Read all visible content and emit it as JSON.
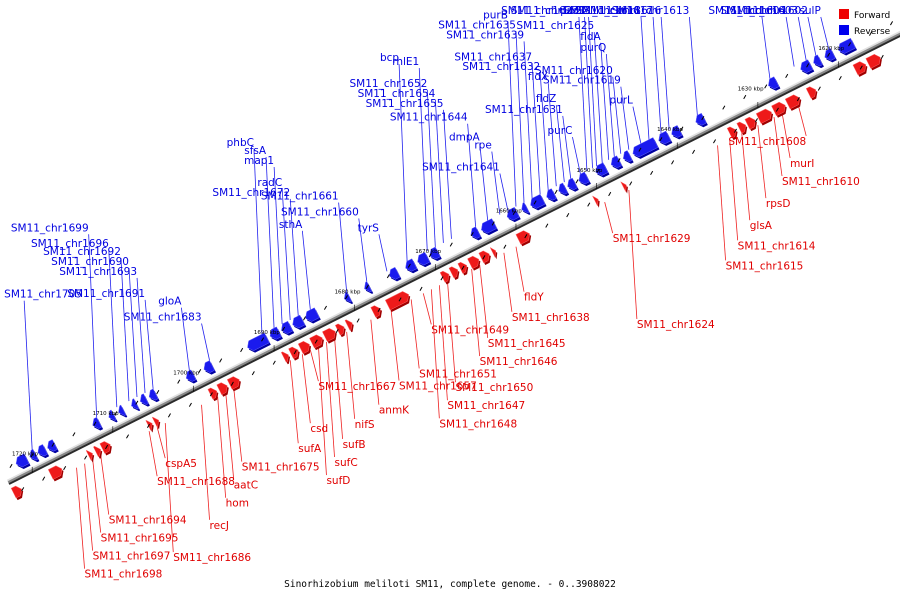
{
  "legend": {
    "forward": {
      "label": "Forward",
      "color": "#ee0000"
    },
    "reverse": {
      "label": "Reverse",
      "color": "#0000ee"
    }
  },
  "caption": "Sinorhizobium meliloti SM11, complete genome. - 0..3908022",
  "ticks": [
    {
      "label": "1620 kbp",
      "pos": 1620
    },
    {
      "label": "1630 kbp",
      "pos": 1630
    },
    {
      "label": "1640 kbp",
      "pos": 1640
    },
    {
      "label": "1650 kbp",
      "pos": 1650
    },
    {
      "label": "1660 kbp",
      "pos": 1660
    },
    {
      "label": "1670 kbp",
      "pos": 1670
    },
    {
      "label": "1680 kbp",
      "pos": 1680
    },
    {
      "label": "1690 kbp",
      "pos": 1690
    },
    {
      "label": "1700 kbp",
      "pos": 1700
    },
    {
      "label": "1710 kbp",
      "pos": 1710
    },
    {
      "label": "1720 kbp",
      "pos": 1720
    }
  ],
  "reverse_labels": [
    {
      "name": "sulP",
      "pos": 1620.2
    },
    {
      "name": "SM11_chr1602",
      "pos": 1621.8
    },
    {
      "name": "SM11_chr1603",
      "pos": 1623.0
    },
    {
      "name": "SM11_chr1604",
      "pos": 1624.5
    },
    {
      "name": "icd",
      "pos": 1627.5
    },
    {
      "name": "SM11_chr1613",
      "pos": 1636.5
    },
    {
      "name": "SM11_chr1616",
      "pos": 1640.0
    },
    {
      "name": "SM11_chr1617",
      "pos": 1641.0
    },
    {
      "name": "SM11_chr1618",
      "pos": 1642.5
    },
    {
      "name": "purL",
      "pos": 1643.5
    },
    {
      "name": "SM11_chr1619",
      "pos": 1645.0
    },
    {
      "name": "SM11_chr1620",
      "pos": 1646.0
    },
    {
      "name": "purQ",
      "pos": 1646.8
    },
    {
      "name": "fldA",
      "pos": 1647.5
    },
    {
      "name": "SM11_chr1625",
      "pos": 1648.3
    },
    {
      "name": "SM11_chr1622",
      "pos": 1649.0
    },
    {
      "name": "purS",
      "pos": 1649.5
    },
    {
      "name": "SM11_chr1623",
      "pos": 1650.2
    },
    {
      "name": "purC",
      "pos": 1651.0
    },
    {
      "name": "SM11_chr1631",
      "pos": 1652.2
    },
    {
      "name": "fldZ",
      "pos": 1653.0
    },
    {
      "name": "fldX",
      "pos": 1654.0
    },
    {
      "name": "SM11_chr1632",
      "pos": 1655.0
    },
    {
      "name": "SM11_chr1637",
      "pos": 1656.0
    },
    {
      "name": "SM11_chr1639",
      "pos": 1657.0
    },
    {
      "name": "SM11_chr1635",
      "pos": 1658.0
    },
    {
      "name": "purB",
      "pos": 1659.0
    },
    {
      "name": "SM11_chr1641",
      "pos": 1660.0
    },
    {
      "name": "rpe",
      "pos": 1661.0
    },
    {
      "name": "dmpA",
      "pos": 1662.5
    },
    {
      "name": "SM11_chr1644",
      "pos": 1664.0
    },
    {
      "name": "SM11_chr1655",
      "pos": 1667.0
    },
    {
      "name": "SM11_chr1654",
      "pos": 1668.0
    },
    {
      "name": "SM11_chr1652",
      "pos": 1669.0
    },
    {
      "name": "rhlE1",
      "pos": 1670.0
    },
    {
      "name": "bcp",
      "pos": 1672.5
    },
    {
      "name": "tyrS",
      "pos": 1675.0
    },
    {
      "name": "SM11_chr1660",
      "pos": 1677.5
    },
    {
      "name": "SM11_chr1661",
      "pos": 1680.0
    },
    {
      "name": "sthA",
      "pos": 1684.5
    },
    {
      "name": "SM11_chr1672",
      "pos": 1686.0
    },
    {
      "name": "radC",
      "pos": 1687.0
    },
    {
      "name": "map1",
      "pos": 1688.0
    },
    {
      "name": "sfsA",
      "pos": 1689.0
    },
    {
      "name": "phbC",
      "pos": 1690.5
    },
    {
      "name": "SM11_chr1683",
      "pos": 1697.0
    },
    {
      "name": "gloA",
      "pos": 1699.5
    },
    {
      "name": "SM11_chr1691",
      "pos": 1704.0
    },
    {
      "name": "SM11_chr1693",
      "pos": 1705.0
    },
    {
      "name": "SM11_chr1690",
      "pos": 1706.0
    },
    {
      "name": "SM11_chr1692",
      "pos": 1707.0
    },
    {
      "name": "SM11_chr1696",
      "pos": 1708.5
    },
    {
      "name": "SM11_chr1699",
      "pos": 1711.0
    },
    {
      "name": "SM11_chr1705",
      "pos": 1719.0
    }
  ],
  "forward_labels": [
    {
      "name": "SM11_chr1608",
      "pos": 1626.0
    },
    {
      "name": "murI",
      "pos": 1628.0
    },
    {
      "name": "SM11_chr1610",
      "pos": 1629.0
    },
    {
      "name": "rpsD",
      "pos": 1631.0
    },
    {
      "name": "glsA",
      "pos": 1633.0
    },
    {
      "name": "SM11_chr1614",
      "pos": 1634.5
    },
    {
      "name": "SM11_chr1615",
      "pos": 1636.0
    },
    {
      "name": "SM11_chr1624",
      "pos": 1647.0
    },
    {
      "name": "SM11_chr1629",
      "pos": 1650.0
    },
    {
      "name": "fldY",
      "pos": 1661.0
    },
    {
      "name": "SM11_chr1638",
      "pos": 1662.5
    },
    {
      "name": "SM11_chr1645",
      "pos": 1665.5
    },
    {
      "name": "SM11_chr1646",
      "pos": 1666.5
    },
    {
      "name": "SM11_chr1650",
      "pos": 1669.5
    },
    {
      "name": "SM11_chr1647",
      "pos": 1670.5
    },
    {
      "name": "SM11_chr1648",
      "pos": 1671.5
    },
    {
      "name": "SM11_chr1649",
      "pos": 1672.5
    },
    {
      "name": "SM11_chr1651",
      "pos": 1674.0
    },
    {
      "name": "SM11_chr1657",
      "pos": 1676.5
    },
    {
      "name": "anmK",
      "pos": 1679.0
    },
    {
      "name": "nifS",
      "pos": 1682.0
    },
    {
      "name": "sufB",
      "pos": 1683.5
    },
    {
      "name": "sufC",
      "pos": 1684.5
    },
    {
      "name": "sufD",
      "pos": 1685.5
    },
    {
      "name": "SM11_chr1667",
      "pos": 1686.5
    },
    {
      "name": "csd",
      "pos": 1687.5
    },
    {
      "name": "sufA",
      "pos": 1689.0
    },
    {
      "name": "SM11_chr1675",
      "pos": 1696.0
    },
    {
      "name": "aatC",
      "pos": 1697.0
    },
    {
      "name": "hom",
      "pos": 1698.0
    },
    {
      "name": "recJ",
      "pos": 1700.0
    },
    {
      "name": "SM11_chr1686",
      "pos": 1704.5
    },
    {
      "name": "cspA5",
      "pos": 1705.5
    },
    {
      "name": "SM11_chr1688",
      "pos": 1706.5
    },
    {
      "name": "SM11_chr1694",
      "pos": 1712.5
    },
    {
      "name": "SM11_chr1695",
      "pos": 1713.5
    },
    {
      "name": "SM11_chr1697",
      "pos": 1714.5
    },
    {
      "name": "SM11_chr1698",
      "pos": 1715.5
    }
  ],
  "reverse_features": [
    [
      1617.5,
      1619.3
    ],
    [
      1620.0,
      1621.0
    ],
    [
      1621.6,
      1622.4
    ],
    [
      1622.8,
      1624.0
    ],
    [
      1627.0,
      1628.0
    ],
    [
      1636.0,
      1637.0
    ],
    [
      1639.0,
      1640.0
    ],
    [
      1640.4,
      1641.6
    ],
    [
      1642.0,
      1644.8
    ],
    [
      1645.2,
      1646.0
    ],
    [
      1646.5,
      1647.5
    ],
    [
      1648.2,
      1649.4
    ],
    [
      1650.5,
      1651.5
    ],
    [
      1652.0,
      1652.9
    ],
    [
      1653.2,
      1654.0
    ],
    [
      1654.6,
      1655.5
    ],
    [
      1656.0,
      1657.5
    ],
    [
      1658.0,
      1658.6
    ],
    [
      1659.2,
      1660.4
    ],
    [
      1662.0,
      1663.6
    ],
    [
      1664.0,
      1664.9
    ],
    [
      1669.0,
      1670.0
    ],
    [
      1670.3,
      1671.5
    ],
    [
      1671.9,
      1673.0
    ],
    [
      1674.0,
      1675.0
    ],
    [
      1677.5,
      1678.1
    ],
    [
      1680.0,
      1680.6
    ],
    [
      1684.0,
      1685.4
    ],
    [
      1685.8,
      1687.0
    ],
    [
      1687.3,
      1688.4
    ],
    [
      1688.7,
      1689.8
    ],
    [
      1690.2,
      1692.6
    ],
    [
      1697.0,
      1698.0
    ],
    [
      1699.3,
      1700.2
    ],
    [
      1704.0,
      1704.8
    ],
    [
      1705.2,
      1705.9
    ],
    [
      1706.4,
      1707.0
    ],
    [
      1708.0,
      1708.6
    ],
    [
      1709.2,
      1709.8
    ],
    [
      1711.0,
      1711.8
    ],
    [
      1716.5,
      1717.4
    ],
    [
      1717.7,
      1718.6
    ],
    [
      1718.9,
      1719.6
    ],
    [
      1720.0,
      1721.3
    ]
  ],
  "forward_features": [
    [
      1615.5,
      1617.0
    ],
    [
      1617.3,
      1618.6
    ],
    [
      1623.5,
      1624.4
    ],
    [
      1625.5,
      1627.0
    ],
    [
      1627.3,
      1628.7
    ],
    [
      1629.0,
      1630.6
    ],
    [
      1631.0,
      1632.0
    ],
    [
      1632.2,
      1633.0
    ],
    [
      1633.4,
      1634.2
    ],
    [
      1647.0,
      1647.4
    ],
    [
      1650.5,
      1650.9
    ],
    [
      1659.0,
      1660.4
    ],
    [
      1663.2,
      1663.6
    ],
    [
      1664.0,
      1665.0
    ],
    [
      1665.3,
      1666.4
    ],
    [
      1666.8,
      1667.6
    ],
    [
      1667.9,
      1668.7
    ],
    [
      1669.0,
      1669.8
    ],
    [
      1674.0,
      1676.6
    ],
    [
      1677.5,
      1678.4
    ],
    [
      1681.0,
      1681.6
    ],
    [
      1682.0,
      1682.8
    ],
    [
      1683.1,
      1684.4
    ],
    [
      1684.7,
      1686.0
    ],
    [
      1686.3,
      1687.4
    ],
    [
      1687.7,
      1688.6
    ],
    [
      1688.9,
      1689.5
    ],
    [
      1695.0,
      1696.2
    ],
    [
      1696.5,
      1697.5
    ],
    [
      1697.8,
      1698.6
    ],
    [
      1705.0,
      1705.5
    ],
    [
      1705.8,
      1706.3
    ],
    [
      1711.0,
      1712.0
    ],
    [
      1712.2,
      1712.8
    ],
    [
      1713.2,
      1713.7
    ],
    [
      1717.0,
      1718.4
    ],
    [
      1722.0,
      1723.0
    ]
  ]
}
